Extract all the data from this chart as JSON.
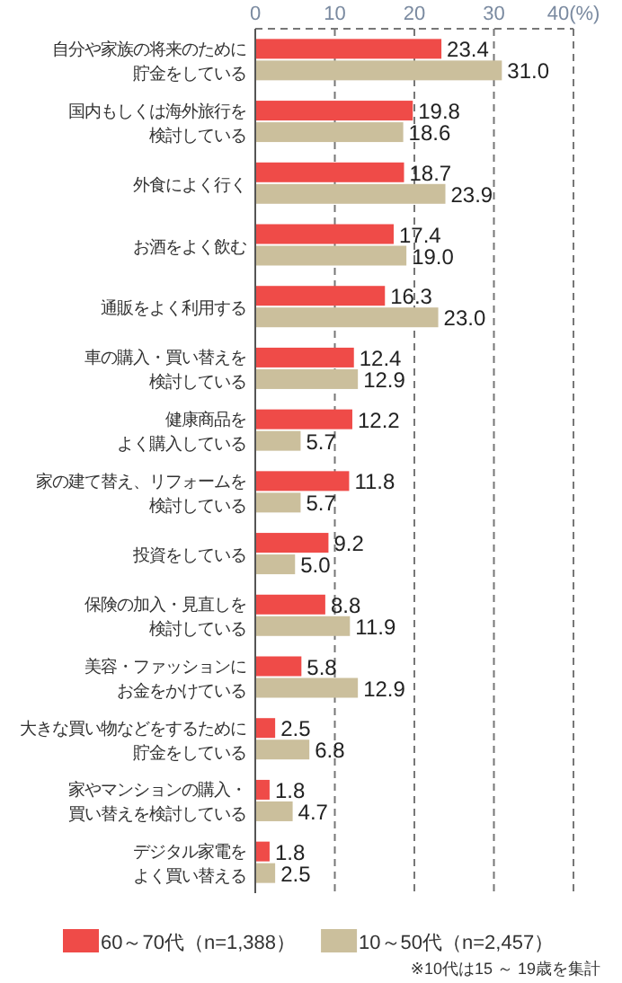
{
  "chart_data": {
    "type": "bar",
    "orientation": "horizontal",
    "categories": [
      "自分や家族の将来のために貯金をしている",
      "国内もしくは海外旅行を検討している",
      "外食によく行く",
      "お酒をよく飲む",
      "通販をよく利用する",
      "車の購入・買い替えを検討している",
      "健康商品をよく購入している",
      "家の建て替え、リフォームを検討している",
      "投資をしている",
      "保険の加入・見直しを検討している",
      "美容・ファッションにお金をかけている",
      "大きな買い物などをするために貯金をしている",
      "家やマンションの購入・買い替えを検討している",
      "デジタル家電をよく買い替える"
    ],
    "series": [
      {
        "name": "60～70代（n=1,388）",
        "color": "#ef4b48",
        "values": [
          23.4,
          19.8,
          18.7,
          17.4,
          16.3,
          12.4,
          12.2,
          11.8,
          9.2,
          8.8,
          5.8,
          2.5,
          1.8,
          1.8
        ],
        "value_labels": [
          "23.4",
          "19.8",
          "18.7",
          "17.4",
          "16.3",
          "12.4",
          "12.2",
          "11.8",
          "9.2",
          "8.8",
          "5.8",
          "2.5",
          "1.8",
          "1.8"
        ]
      },
      {
        "name": "10～50代（n=2,457）",
        "color": "#cbbf9c",
        "values": [
          31.0,
          18.6,
          23.9,
          19.0,
          23.0,
          12.9,
          5.7,
          5.7,
          5.0,
          11.9,
          12.9,
          6.8,
          4.7,
          2.5
        ],
        "value_labels": [
          "31.0",
          "18.6",
          "23.9",
          "19.0",
          "23.0",
          "12.9",
          "5.7",
          "5.7",
          "5.0",
          "11.9",
          "12.9",
          "6.8",
          "4.7",
          "2.5"
        ]
      }
    ],
    "xlim": [
      0,
      40
    ],
    "xticks": [
      0,
      10,
      20,
      30,
      {
        "value": 40,
        "label": "40(%)"
      }
    ],
    "grid": "x",
    "legend": "bottom",
    "annotations": [
      "※10代は15 ～ 19歳を集計"
    ]
  }
}
